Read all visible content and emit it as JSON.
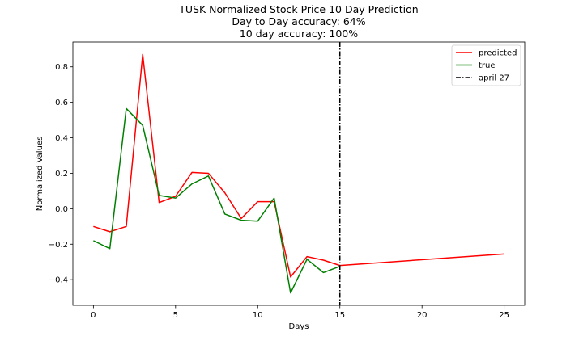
{
  "chart_data": {
    "type": "line",
    "title_lines": [
      "TUSK Normalized Stock Price 10 Day Prediction",
      "Day to Day accuracy: 64%",
      "10 day accuracy: 100%"
    ],
    "xlabel": "Days",
    "ylabel": "Normalized Values",
    "xlim": [
      -1.25,
      26.25
    ],
    "ylim": [
      -0.545,
      0.94
    ],
    "xticks": [
      0,
      5,
      10,
      15,
      20,
      25
    ],
    "xtick_labels": [
      "0",
      "5",
      "10",
      "15",
      "20",
      "25"
    ],
    "yticks": [
      -0.4,
      -0.2,
      0.0,
      0.2,
      0.4,
      0.6,
      0.8
    ],
    "ytick_labels": [
      "−0.4",
      "−0.2",
      "0.0",
      "0.2",
      "0.4",
      "0.6",
      "0.8"
    ],
    "grid": false,
    "legend_position": "top-right",
    "series": [
      {
        "name": "predicted",
        "color": "#ff0000",
        "x": [
          0,
          1,
          2,
          3,
          4,
          5,
          6,
          7,
          8,
          9,
          10,
          11,
          12,
          13,
          14,
          15,
          25
        ],
        "y": [
          -0.1,
          -0.13,
          -0.1,
          0.87,
          0.035,
          0.07,
          0.205,
          0.2,
          0.09,
          -0.055,
          0.04,
          0.04,
          -0.385,
          -0.27,
          -0.29,
          -0.32,
          -0.255
        ]
      },
      {
        "name": "true",
        "color": "#008000",
        "x": [
          0,
          1,
          2,
          3,
          4,
          5,
          6,
          7,
          8,
          9,
          10,
          11,
          12,
          13,
          14,
          15
        ],
        "y": [
          -0.18,
          -0.225,
          0.565,
          0.47,
          0.075,
          0.06,
          0.14,
          0.185,
          -0.03,
          -0.065,
          -0.07,
          0.06,
          -0.475,
          -0.285,
          -0.36,
          -0.325
        ]
      }
    ],
    "vline": {
      "name": "april 27",
      "x": 15,
      "color": "#000000",
      "style": "dash-dot"
    }
  }
}
